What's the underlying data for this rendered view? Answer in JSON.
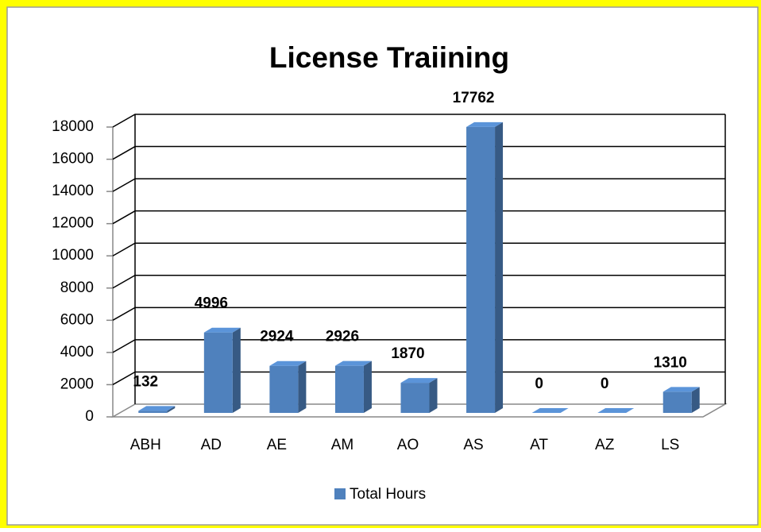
{
  "chart_data": {
    "type": "bar3d",
    "title": "License Traiining",
    "categories": [
      "ABH",
      "AD",
      "AE",
      "AM",
      "AO",
      "AS",
      "AT",
      "AZ",
      "LS"
    ],
    "series": [
      {
        "name": "Total Hours",
        "color": "#4f81bd",
        "values": [
          132,
          4996,
          2924,
          2926,
          1870,
          17762,
          0,
          0,
          1310
        ]
      }
    ],
    "ylim": [
      0,
      18000
    ],
    "yticks": [
      0,
      2000,
      4000,
      6000,
      8000,
      10000,
      12000,
      14000,
      16000,
      18000
    ],
    "grid": true,
    "legend": "bottom"
  }
}
